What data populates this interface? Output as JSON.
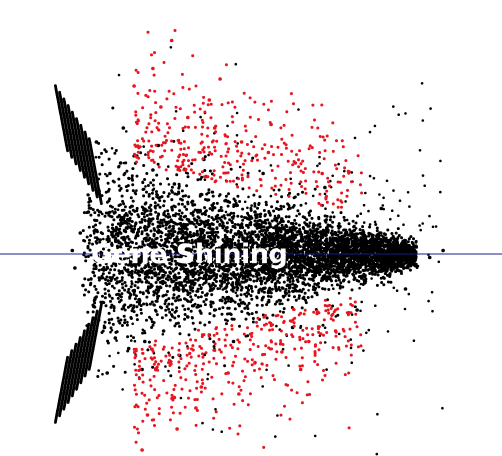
{
  "chart_data": {
    "type": "scatter",
    "title": "Gene Shining",
    "xlabel": "",
    "ylabel": "",
    "xlim": [
      0,
      16
    ],
    "ylim": [
      -6,
      6
    ],
    "grid": false,
    "legend": "none",
    "reference_line": {
      "y": 0,
      "color": "#1a1a8c"
    },
    "colors": {
      "non_significant": "#000000",
      "significant": "#e8141e"
    },
    "series": [
      {
        "name": "",
        "color": "#000000",
        "x": [
          1.2,
          1.3,
          1.5,
          1.6,
          1.8,
          2.0,
          2.2,
          2.4,
          2.6,
          2.8,
          3.0,
          3.3,
          3.6,
          3.9,
          4.2,
          4.6,
          5.0,
          5.5,
          6.0,
          6.5,
          7.0,
          7.5,
          8.0,
          8.5,
          9.0,
          9.5,
          10.0,
          10.5,
          11.0,
          11.5,
          12.0,
          12.5,
          13.0,
          13.5,
          14.0,
          14.5,
          15.0,
          2.1,
          2.5,
          3.1,
          3.8,
          4.4,
          5.2,
          6.1,
          7.2,
          8.3,
          9.4,
          10.6,
          11.8,
          12.7,
          13.6
        ],
        "y": [
          0.1,
          -0.4,
          0.6,
          -0.9,
          1.2,
          -1.5,
          1.8,
          -2.1,
          2.3,
          -2.4,
          2.6,
          -2.7,
          2.8,
          -2.5,
          2.4,
          -2.2,
          2.0,
          -1.8,
          1.7,
          -1.6,
          1.5,
          -1.4,
          1.2,
          -1.1,
          1.0,
          -0.9,
          0.8,
          -0.7,
          0.6,
          -0.5,
          0.4,
          -0.3,
          0.3,
          -0.2,
          0.2,
          -0.1,
          0.1,
          3.2,
          -3.4,
          3.6,
          -3.3,
          3.1,
          -2.9,
          2.7,
          -2.5,
          2.3,
          -2.1,
          1.9,
          -1.6,
          1.3,
          -1.0
        ]
      },
      {
        "name": "",
        "color": "#e8141e",
        "x": [
          3.5,
          4.0,
          4.5,
          5.0,
          5.5,
          6.0,
          6.5,
          7.0,
          7.5,
          8.0,
          8.5,
          9.0,
          9.5,
          10.0,
          10.5,
          11.0,
          4.2,
          5.1,
          6.3,
          7.4,
          8.6,
          9.7,
          3.8,
          4.9,
          6.7,
          5.8
        ],
        "y": [
          4.8,
          -4.6,
          4.2,
          -4.1,
          3.9,
          -3.8,
          3.6,
          -3.4,
          3.2,
          -3.1,
          2.9,
          -2.8,
          2.6,
          -2.5,
          2.3,
          -2.2,
          5.3,
          -5.0,
          4.4,
          -4.0,
          3.7,
          -3.3,
          -5.6,
          6.1,
          5.0,
          -4.4
        ]
      }
    ]
  }
}
